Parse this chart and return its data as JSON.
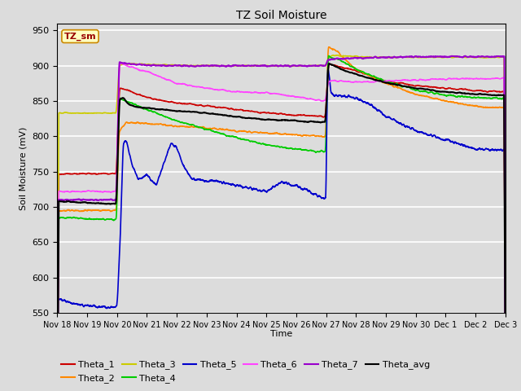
{
  "title": "TZ Soil Moisture",
  "xlabel": "Time",
  "ylabel": "Soil Moisture (mV)",
  "ylim": [
    550,
    960
  ],
  "yticks": [
    550,
    600,
    650,
    700,
    750,
    800,
    850,
    900,
    950
  ],
  "plot_bg_color": "#dcdcdc",
  "fig_bg_color": "#dcdcdc",
  "legend_label": "TZ_sm",
  "series_colors": {
    "Theta_1": "#cc0000",
    "Theta_2": "#ff8800",
    "Theta_3": "#cccc00",
    "Theta_4": "#00cc00",
    "Theta_5": "#0000cc",
    "Theta_6": "#ff44ff",
    "Theta_7": "#9900cc",
    "Theta_avg": "#000000"
  },
  "xticklabels": [
    "Nov 18",
    "Nov 19",
    "Nov 20",
    "Nov 21",
    "Nov 22",
    "Nov 23",
    "Nov 24",
    "Nov 25",
    "Nov 26",
    "Nov 27",
    "Nov 28",
    "Nov 29",
    "Nov 30",
    "Dec 1",
    "Dec 2",
    "Dec 3"
  ]
}
